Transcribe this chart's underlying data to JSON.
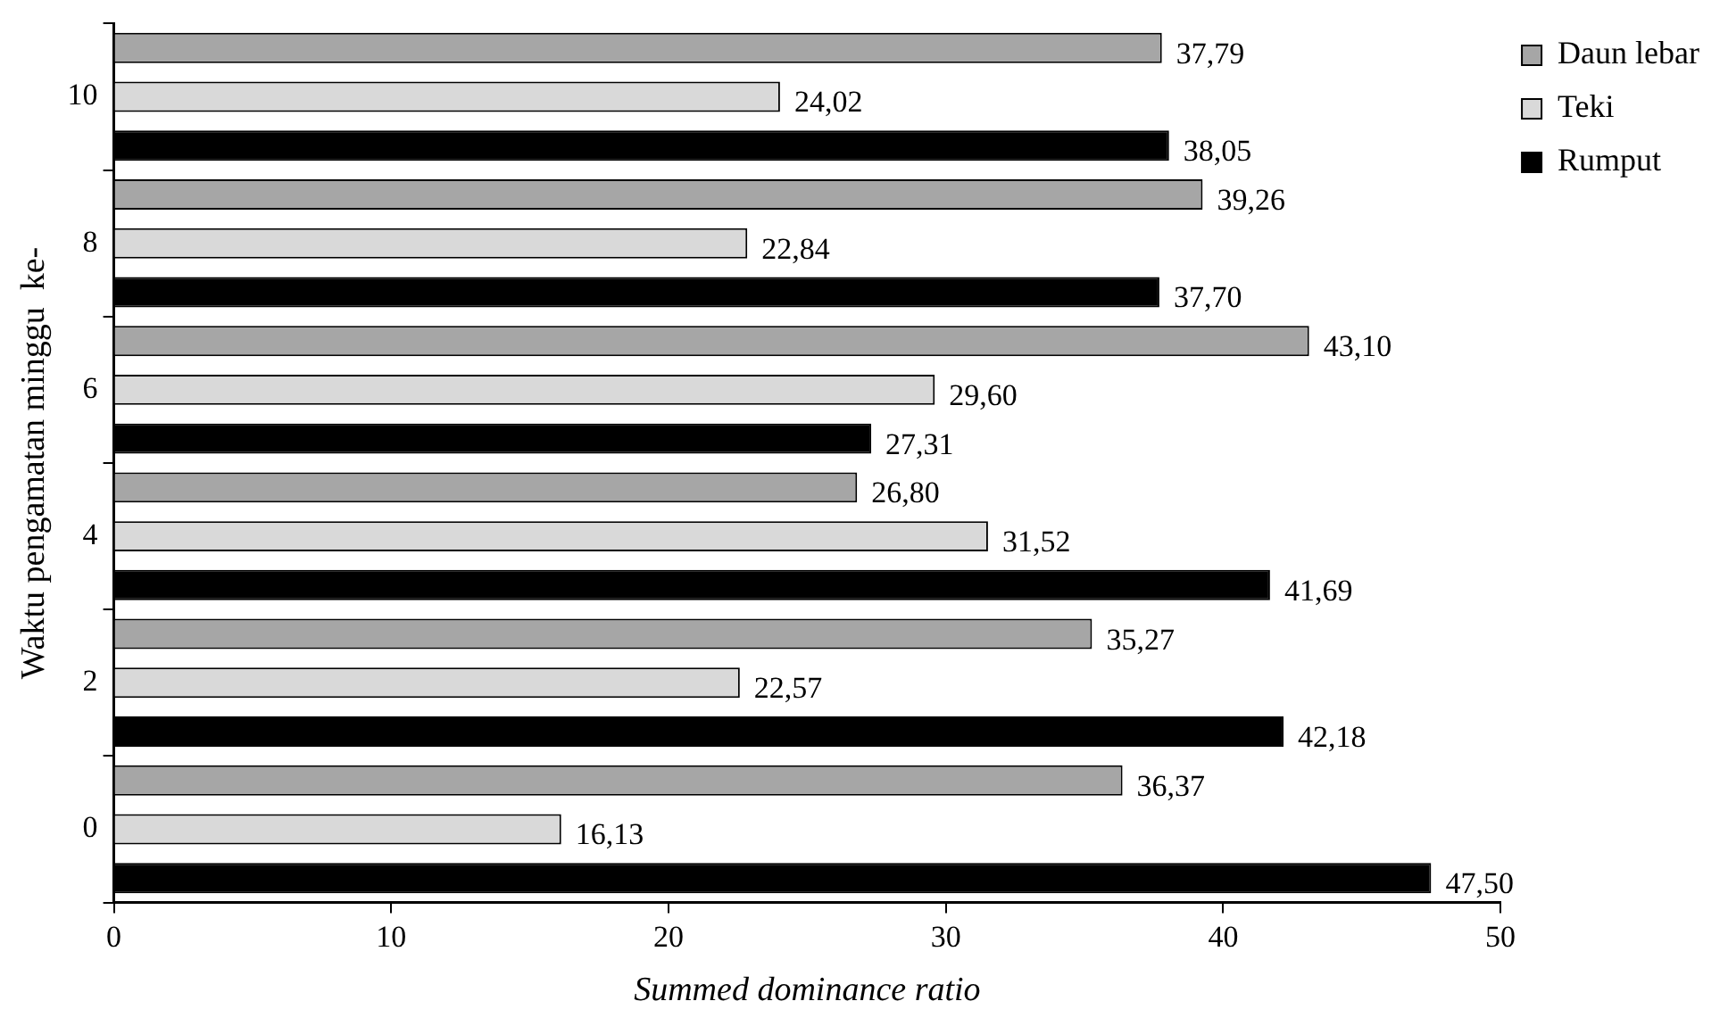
{
  "chart_data": {
    "type": "bar",
    "orientation": "horizontal",
    "xlabel": "Summed dominance ratio",
    "ylabel": "Waktu pengamatan minggu  ke-",
    "categories": [
      "10",
      "8",
      "6",
      "4",
      "2",
      "0"
    ],
    "series": [
      {
        "name": "Daun lebar",
        "color": "#a6a6a6",
        "values": [
          37.79,
          39.26,
          43.1,
          26.8,
          35.27,
          36.37
        ],
        "value_labels": [
          "37,79",
          "39,26",
          "43,10",
          "26,80",
          "35,27",
          "36,37"
        ]
      },
      {
        "name": "Teki",
        "color": "#d9d9d9",
        "values": [
          24.02,
          22.84,
          29.6,
          31.52,
          22.57,
          16.13
        ],
        "value_labels": [
          "24,02",
          "22,84",
          "29,60",
          "31,52",
          "22,57",
          "16,13"
        ]
      },
      {
        "name": "Rumput",
        "color": "#000000",
        "values": [
          38.05,
          37.7,
          27.31,
          41.69,
          42.18,
          47.5
        ],
        "value_labels": [
          "38,05",
          "37,70",
          "27,31",
          "41,69",
          "42,18",
          "47,50"
        ]
      }
    ],
    "xlim": [
      0,
      50
    ],
    "xticks": [
      0,
      10,
      20,
      30,
      40,
      50
    ],
    "grid": false,
    "legend": "top right"
  }
}
